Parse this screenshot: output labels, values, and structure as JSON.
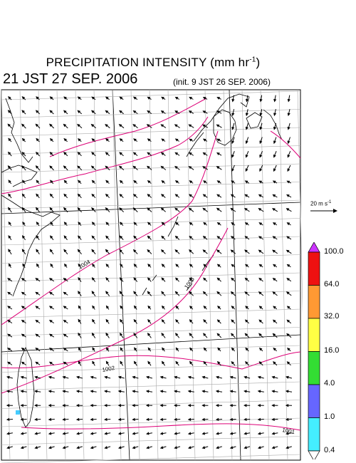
{
  "title": {
    "main": "PRECIPITATION INTENSITY (mm hr",
    "unit_sup": "-1",
    "close": ")",
    "datetime": "21 JST 27 SEP. 2006",
    "init": "(init. 9 JST 26 SEP. 2006)"
  },
  "reference_vector": {
    "label": "20 m s",
    "sup": "-1"
  },
  "colorbar": {
    "levels": [
      "100.0",
      "64.0",
      "32.0",
      "16.0",
      "4.0",
      "1.0",
      "0.4"
    ],
    "colors": [
      "#cc33ff",
      "#ee1111",
      "#ff9933",
      "#ffff44",
      "#33dd33",
      "#6666ff",
      "#44eeff"
    ]
  },
  "isobars": [
    {
      "label": "1004",
      "color": "#dd0077"
    },
    {
      "label": "1003",
      "color": "#dd0077"
    },
    {
      "label": "1002",
      "color": "#dd0077"
    },
    {
      "label": "1001",
      "color": "#dd0077"
    }
  ]
}
